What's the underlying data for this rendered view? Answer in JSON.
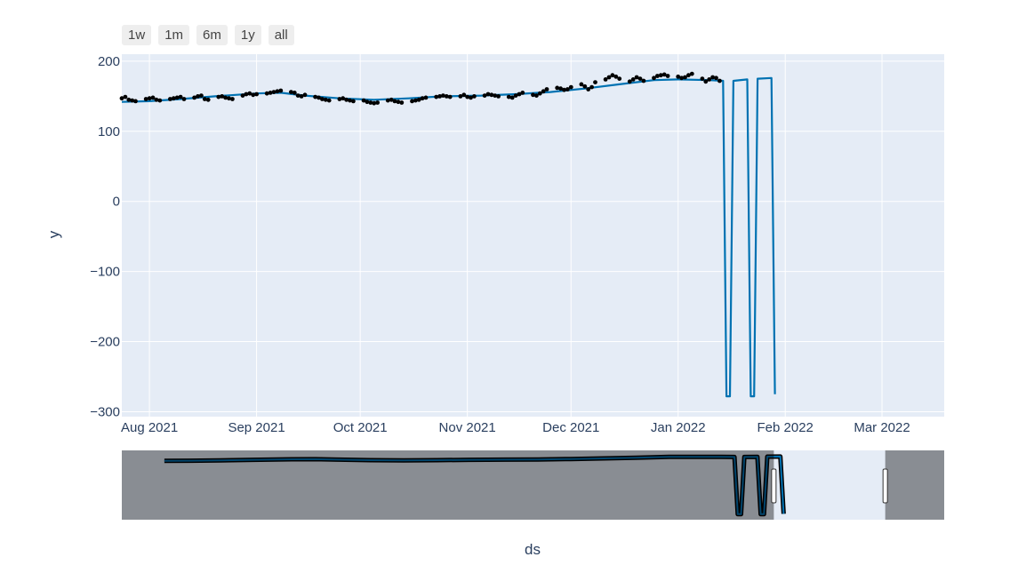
{
  "range_selector": {
    "buttons": [
      {
        "label": "1w"
      },
      {
        "label": "1m"
      },
      {
        "label": "6m"
      },
      {
        "label": "1y"
      },
      {
        "label": "all"
      }
    ]
  },
  "chart_data": {
    "type": "line",
    "title": "",
    "xlabel": "ds",
    "ylabel": "y",
    "ylim": [
      -307,
      210
    ],
    "xlim": [
      "2021-07-24",
      "2022-03-19"
    ],
    "grid": true,
    "plot_bg": "#e5ecf6",
    "yticks": [
      {
        "value": 200,
        "label": "200"
      },
      {
        "value": 100,
        "label": "100"
      },
      {
        "value": 0,
        "label": "0"
      },
      {
        "value": -100,
        "label": "−100"
      },
      {
        "value": -200,
        "label": "−200"
      },
      {
        "value": -300,
        "label": "−300"
      }
    ],
    "xticks": [
      {
        "date": "2021-08-01",
        "label": "Aug 2021"
      },
      {
        "date": "2021-09-01",
        "label": "Sep 2021"
      },
      {
        "date": "2021-10-01",
        "label": "Oct 2021"
      },
      {
        "date": "2021-11-01",
        "label": "Nov 2021"
      },
      {
        "date": "2021-12-01",
        "label": "Dec 2021"
      },
      {
        "date": "2022-01-01",
        "label": "Jan 2022"
      },
      {
        "date": "2022-02-01",
        "label": "Feb 2022"
      },
      {
        "date": "2022-03-01",
        "label": "Mar 2022"
      }
    ],
    "series": [
      {
        "type": "line",
        "color": "#0072B2",
        "points": [
          [
            "2021-07-24",
            142
          ],
          [
            "2021-08-01",
            143
          ],
          [
            "2021-08-10",
            146
          ],
          [
            "2021-08-20",
            150
          ],
          [
            "2021-09-01",
            154
          ],
          [
            "2021-09-08",
            155
          ],
          [
            "2021-09-15",
            151
          ],
          [
            "2021-09-25",
            147
          ],
          [
            "2021-10-05",
            145
          ],
          [
            "2021-10-15",
            147
          ],
          [
            "2021-10-25",
            150
          ],
          [
            "2021-11-05",
            151
          ],
          [
            "2021-11-15",
            153
          ],
          [
            "2021-11-25",
            156
          ],
          [
            "2021-12-05",
            161
          ],
          [
            "2021-12-15",
            167
          ],
          [
            "2021-12-25",
            173
          ],
          [
            "2022-01-01",
            174
          ],
          [
            "2022-01-10",
            173
          ],
          [
            "2022-01-14",
            172
          ],
          [
            "2022-01-15",
            -278
          ],
          [
            "2022-01-16",
            -278
          ],
          [
            "2022-01-17",
            172
          ],
          [
            "2022-01-21",
            174
          ],
          [
            "2022-01-22",
            -278
          ],
          [
            "2022-01-23",
            -278
          ],
          [
            "2022-01-24",
            175
          ],
          [
            "2022-01-28",
            176
          ],
          [
            "2022-01-29",
            -275
          ]
        ]
      },
      {
        "type": "scatter",
        "color": "#000000",
        "points": [
          [
            "2021-07-24",
            147
          ],
          [
            "2021-07-25",
            149
          ],
          [
            "2021-07-26",
            145
          ],
          [
            "2021-07-27",
            144
          ],
          [
            "2021-07-28",
            143
          ],
          [
            "2021-07-31",
            146
          ],
          [
            "2021-08-01",
            147
          ],
          [
            "2021-08-02",
            148
          ],
          [
            "2021-08-03",
            145
          ],
          [
            "2021-08-04",
            144
          ],
          [
            "2021-08-07",
            146
          ],
          [
            "2021-08-08",
            147
          ],
          [
            "2021-08-09",
            148
          ],
          [
            "2021-08-10",
            149
          ],
          [
            "2021-08-11",
            146
          ],
          [
            "2021-08-14",
            148
          ],
          [
            "2021-08-15",
            150
          ],
          [
            "2021-08-16",
            151
          ],
          [
            "2021-08-17",
            146
          ],
          [
            "2021-08-18",
            145
          ],
          [
            "2021-08-21",
            149
          ],
          [
            "2021-08-22",
            150
          ],
          [
            "2021-08-23",
            148
          ],
          [
            "2021-08-24",
            147
          ],
          [
            "2021-08-25",
            146
          ],
          [
            "2021-08-28",
            151
          ],
          [
            "2021-08-29",
            153
          ],
          [
            "2021-08-30",
            154
          ],
          [
            "2021-08-31",
            152
          ],
          [
            "2021-09-01",
            153
          ],
          [
            "2021-09-04",
            154
          ],
          [
            "2021-09-05",
            155
          ],
          [
            "2021-09-06",
            156
          ],
          [
            "2021-09-07",
            157
          ],
          [
            "2021-09-08",
            158
          ],
          [
            "2021-09-11",
            156
          ],
          [
            "2021-09-12",
            155
          ],
          [
            "2021-09-13",
            151
          ],
          [
            "2021-09-14",
            150
          ],
          [
            "2021-09-15",
            152
          ],
          [
            "2021-09-18",
            149
          ],
          [
            "2021-09-19",
            148
          ],
          [
            "2021-09-20",
            146
          ],
          [
            "2021-09-21",
            145
          ],
          [
            "2021-09-22",
            144
          ],
          [
            "2021-09-25",
            146
          ],
          [
            "2021-09-26",
            147
          ],
          [
            "2021-09-27",
            145
          ],
          [
            "2021-09-28",
            144
          ],
          [
            "2021-09-29",
            143
          ],
          [
            "2021-10-02",
            144
          ],
          [
            "2021-10-03",
            142
          ],
          [
            "2021-10-04",
            141
          ],
          [
            "2021-10-05",
            140
          ],
          [
            "2021-10-06",
            141
          ],
          [
            "2021-10-09",
            144
          ],
          [
            "2021-10-10",
            145
          ],
          [
            "2021-10-11",
            143
          ],
          [
            "2021-10-12",
            142
          ],
          [
            "2021-10-13",
            141
          ],
          [
            "2021-10-16",
            143
          ],
          [
            "2021-10-17",
            144
          ],
          [
            "2021-10-18",
            145
          ],
          [
            "2021-10-19",
            147
          ],
          [
            "2021-10-20",
            148
          ],
          [
            "2021-10-23",
            149
          ],
          [
            "2021-10-24",
            150
          ],
          [
            "2021-10-25",
            151
          ],
          [
            "2021-10-26",
            150
          ],
          [
            "2021-10-27",
            149
          ],
          [
            "2021-10-30",
            150
          ],
          [
            "2021-10-31",
            152
          ],
          [
            "2021-11-01",
            149
          ],
          [
            "2021-11-02",
            148
          ],
          [
            "2021-11-03",
            150
          ],
          [
            "2021-11-06",
            151
          ],
          [
            "2021-11-07",
            153
          ],
          [
            "2021-11-08",
            152
          ],
          [
            "2021-11-09",
            151
          ],
          [
            "2021-11-10",
            150
          ],
          [
            "2021-11-13",
            149
          ],
          [
            "2021-11-14",
            148
          ],
          [
            "2021-11-15",
            151
          ],
          [
            "2021-11-16",
            153
          ],
          [
            "2021-11-17",
            155
          ],
          [
            "2021-11-20",
            152
          ],
          [
            "2021-11-21",
            151
          ],
          [
            "2021-11-22",
            154
          ],
          [
            "2021-11-23",
            157
          ],
          [
            "2021-11-24",
            160
          ],
          [
            "2021-11-27",
            162
          ],
          [
            "2021-11-28",
            161
          ],
          [
            "2021-11-29",
            159
          ],
          [
            "2021-11-30",
            160
          ],
          [
            "2021-12-01",
            163
          ],
          [
            "2021-12-04",
            167
          ],
          [
            "2021-12-05",
            164
          ],
          [
            "2021-12-06",
            160
          ],
          [
            "2021-12-07",
            163
          ],
          [
            "2021-12-08",
            170
          ],
          [
            "2021-12-11",
            174
          ],
          [
            "2021-12-12",
            177
          ],
          [
            "2021-12-13",
            180
          ],
          [
            "2021-12-14",
            178
          ],
          [
            "2021-12-15",
            175
          ],
          [
            "2021-12-18",
            171
          ],
          [
            "2021-12-19",
            174
          ],
          [
            "2021-12-20",
            177
          ],
          [
            "2021-12-21",
            175
          ],
          [
            "2021-12-22",
            172
          ],
          [
            "2021-12-25",
            176
          ],
          [
            "2021-12-26",
            179
          ],
          [
            "2021-12-27",
            180
          ],
          [
            "2021-12-28",
            181
          ],
          [
            "2021-12-29",
            179
          ],
          [
            "2022-01-01",
            178
          ],
          [
            "2022-01-02",
            176
          ],
          [
            "2022-01-03",
            177
          ],
          [
            "2022-01-04",
            180
          ],
          [
            "2022-01-05",
            182
          ],
          [
            "2022-01-08",
            175
          ],
          [
            "2022-01-09",
            171
          ],
          [
            "2022-01-10",
            174
          ],
          [
            "2022-01-11",
            177
          ],
          [
            "2022-01-12",
            176
          ],
          [
            "2022-01-13",
            172
          ]
        ]
      }
    ],
    "rangeslider": {
      "range": [
        "2021-07-11",
        "2022-03-19"
      ],
      "selected": [
        "2022-01-26",
        "2022-03-01"
      ]
    }
  }
}
